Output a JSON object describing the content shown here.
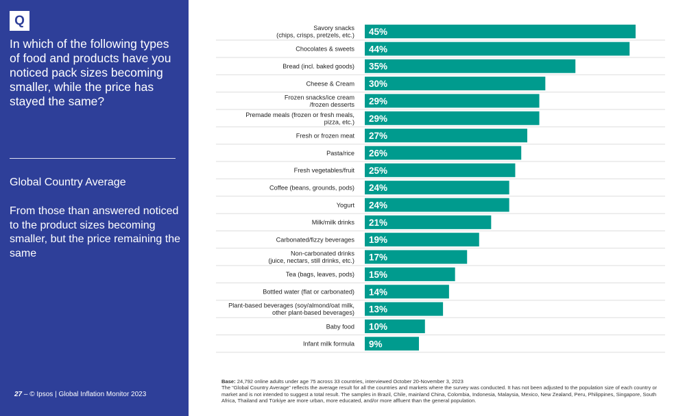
{
  "sidebar": {
    "badge": "Q",
    "question": "In which of the following types of food and products have you noticed pack sizes becoming smaller, while the price has stayed the same?",
    "subhead": "Global Country Average",
    "description": "From those than answered noticed to the product sizes becoming smaller, but the price remaining the same",
    "footer_page": "27",
    "footer_text": " – © Ipsos | Global Inflation Monitor 2023"
  },
  "notes": {
    "base_label": "Base:",
    "base_text": " 24,792 online adults under age 75 across 33 countries, interviewed October 20-November 3, 2023",
    "body": "The “Global Country Average” reflects the average result for all the countries and markets where the survey was conducted. It has not been adjusted to the population size of each country or market and is not intended to suggest a total result. The samples in Brazil, Chile, mainland China, Colombia, Indonesia, Malaysia, Mexico, New Zealand, Peru, Philippines, Singapore, South Africa, Thailand and Türkiye are more urban, more educated, and/or more affluent than the general population."
  },
  "colors": {
    "sidebar": "#2e3f99",
    "bar": "#009b8e",
    "separator": "#dddddd"
  },
  "chart_data": {
    "type": "bar",
    "orientation": "horizontal",
    "categories": [
      [
        "Savory snacks",
        "(chips, crisps, pretzels, etc.)"
      ],
      [
        "Chocolates & sweets"
      ],
      [
        "Bread (incl. baked goods)"
      ],
      [
        "Cheese & Cream"
      ],
      [
        "Frozen snacks/ice cream",
        "/frozen desserts"
      ],
      [
        "Premade meals (frozen or fresh meals,",
        "pizza, etc.)"
      ],
      [
        "Fresh or frozen meat"
      ],
      [
        "Pasta/rice"
      ],
      [
        "Fresh vegetables/fruit"
      ],
      [
        "Coffee (beans, grounds, pods)"
      ],
      [
        "Yogurt"
      ],
      [
        "Milk/milk drinks"
      ],
      [
        "Carbonated/fizzy beverages"
      ],
      [
        "Non-carbonated drinks",
        "(juice, nectars, still drinks, etc.)"
      ],
      [
        "Tea (bags, leaves, pods)"
      ],
      [
        "Bottled water (flat or carbonated)"
      ],
      [
        "Plant-based beverages (soy/almond/oat milk,",
        "other plant-based beverages)"
      ],
      [
        "Baby food"
      ],
      [
        "Infant milk formula"
      ]
    ],
    "values": [
      45,
      44,
      35,
      30,
      29,
      29,
      27,
      26,
      25,
      24,
      24,
      21,
      19,
      17,
      15,
      14,
      13,
      10,
      9
    ],
    "value_suffix": "%",
    "xlim": [
      0,
      50
    ],
    "grid": false,
    "legend": "none"
  }
}
